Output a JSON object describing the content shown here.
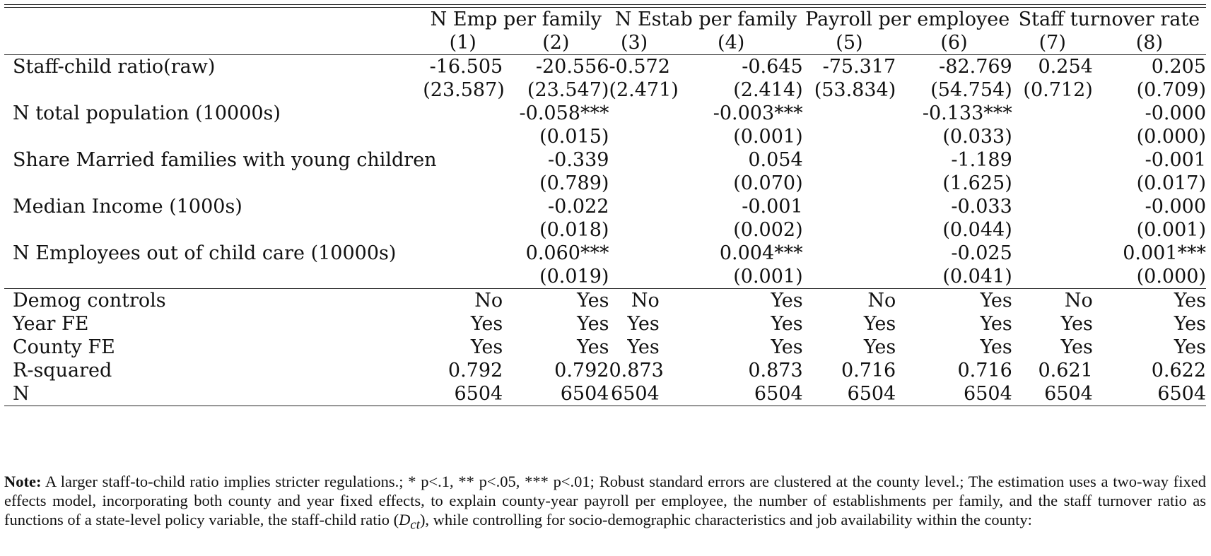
{
  "table": {
    "groups": [
      "N Emp per family",
      "N Estab per family",
      "Payroll per employee",
      "Staff turnover rate"
    ],
    "col_numbers": [
      "(1)",
      "(2)",
      "(3)",
      "(4)",
      "(5)",
      "(6)",
      "(7)",
      "(8)"
    ],
    "coef_rows": [
      {
        "label": "Staff-child ratio(raw)",
        "coef": [
          "-16.505",
          "-20.556",
          "-0.572",
          "-0.645",
          "-75.317",
          "-82.769",
          "0.254",
          "0.205"
        ],
        "se": [
          "(23.587)",
          "(23.547)",
          "(2.471)",
          "(2.414)",
          "(53.834)",
          "(54.754)",
          "(0.712)",
          "(0.709)"
        ]
      },
      {
        "label": "N total population (10000s)",
        "coef": [
          "",
          "-0.058***",
          "",
          "-0.003***",
          "",
          "-0.133***",
          "",
          "-0.000"
        ],
        "se": [
          "",
          "(0.015)",
          "",
          "(0.001)",
          "",
          "(0.033)",
          "",
          "(0.000)"
        ]
      },
      {
        "label": "Share Married families with young children",
        "coef": [
          "",
          "-0.339",
          "",
          "0.054",
          "",
          "-1.189",
          "",
          "-0.001"
        ],
        "se": [
          "",
          "(0.789)",
          "",
          "(0.070)",
          "",
          "(1.625)",
          "",
          "(0.017)"
        ]
      },
      {
        "label": "Median Income (1000s)",
        "coef": [
          "",
          "-0.022",
          "",
          "-0.001",
          "",
          "-0.033",
          "",
          "-0.000"
        ],
        "se": [
          "",
          "(0.018)",
          "",
          "(0.002)",
          "",
          "(0.044)",
          "",
          "(0.001)"
        ]
      },
      {
        "label": "N Employees out of child care (10000s)",
        "coef": [
          "",
          "0.060***",
          "",
          "0.004***",
          "",
          "-0.025",
          "",
          "0.001***"
        ],
        "se": [
          "",
          "(0.019)",
          "",
          "(0.001)",
          "",
          "(0.041)",
          "",
          "(0.000)"
        ]
      }
    ],
    "stat_rows": [
      {
        "label": "Demog controls",
        "values": [
          "No",
          "Yes",
          "No",
          "Yes",
          "No",
          "Yes",
          "No",
          "Yes"
        ]
      },
      {
        "label": "Year FE",
        "values": [
          "Yes",
          "Yes",
          "Yes",
          "Yes",
          "Yes",
          "Yes",
          "Yes",
          "Yes"
        ]
      },
      {
        "label": "County FE",
        "values": [
          "Yes",
          "Yes",
          "Yes",
          "Yes",
          "Yes",
          "Yes",
          "Yes",
          "Yes"
        ]
      },
      {
        "label": "R-squared",
        "values": [
          "0.792",
          "0.792",
          "0.873",
          "0.873",
          "0.716",
          "0.716",
          "0.621",
          "0.622"
        ]
      },
      {
        "label": "N",
        "values": [
          "6504",
          "6504",
          "6504",
          "6504",
          "6504",
          "6504",
          "6504",
          "6504"
        ]
      }
    ]
  },
  "note": {
    "bold_label": "Note:",
    "text_before": " A larger staff-to-child ratio implies stricter regulations.; * p<.1, ** p<.05, *** p<.01; Robust standard errors are clustered at the county level.; The estimation uses a two-way fixed effects model, incorporating both county and year fixed effects, to explain county-year payroll per employee, the number of establishments per family, and the staff turnover ratio as functions of a state-level policy variable, the staff-child ratio (",
    "math": "D",
    "math_sub": "ct",
    "text_after": "), while controlling for socio-demographic characteristics and job availability within the county:"
  }
}
